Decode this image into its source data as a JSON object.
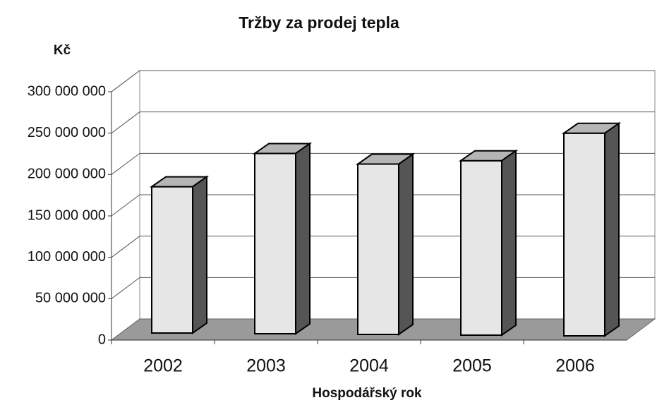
{
  "chart_data": {
    "type": "bar3d",
    "title": "Tržby za prodej tepla",
    "y_label": "Kč",
    "x_label": "Hospodářský rok",
    "categories": [
      "2002",
      "2003",
      "2004",
      "2005",
      "2006"
    ],
    "values": [
      187000000,
      228000000,
      216000000,
      221000000,
      255000000
    ],
    "color": "#e6e6e6",
    "ylim": [
      0,
      300000000
    ],
    "yticks": [
      0,
      {
        "value": 50000000,
        "label": "50 000 000"
      },
      {
        "value": 100000000,
        "label": "100 000 000"
      },
      {
        "value": 150000000,
        "label": "150 000 000"
      },
      {
        "value": 200000000,
        "label": "200 000 000"
      },
      {
        "value": 250000000,
        "label": "250 000 000"
      },
      {
        "value": 300000000,
        "label": "300 000 000"
      }
    ],
    "grid": true
  }
}
